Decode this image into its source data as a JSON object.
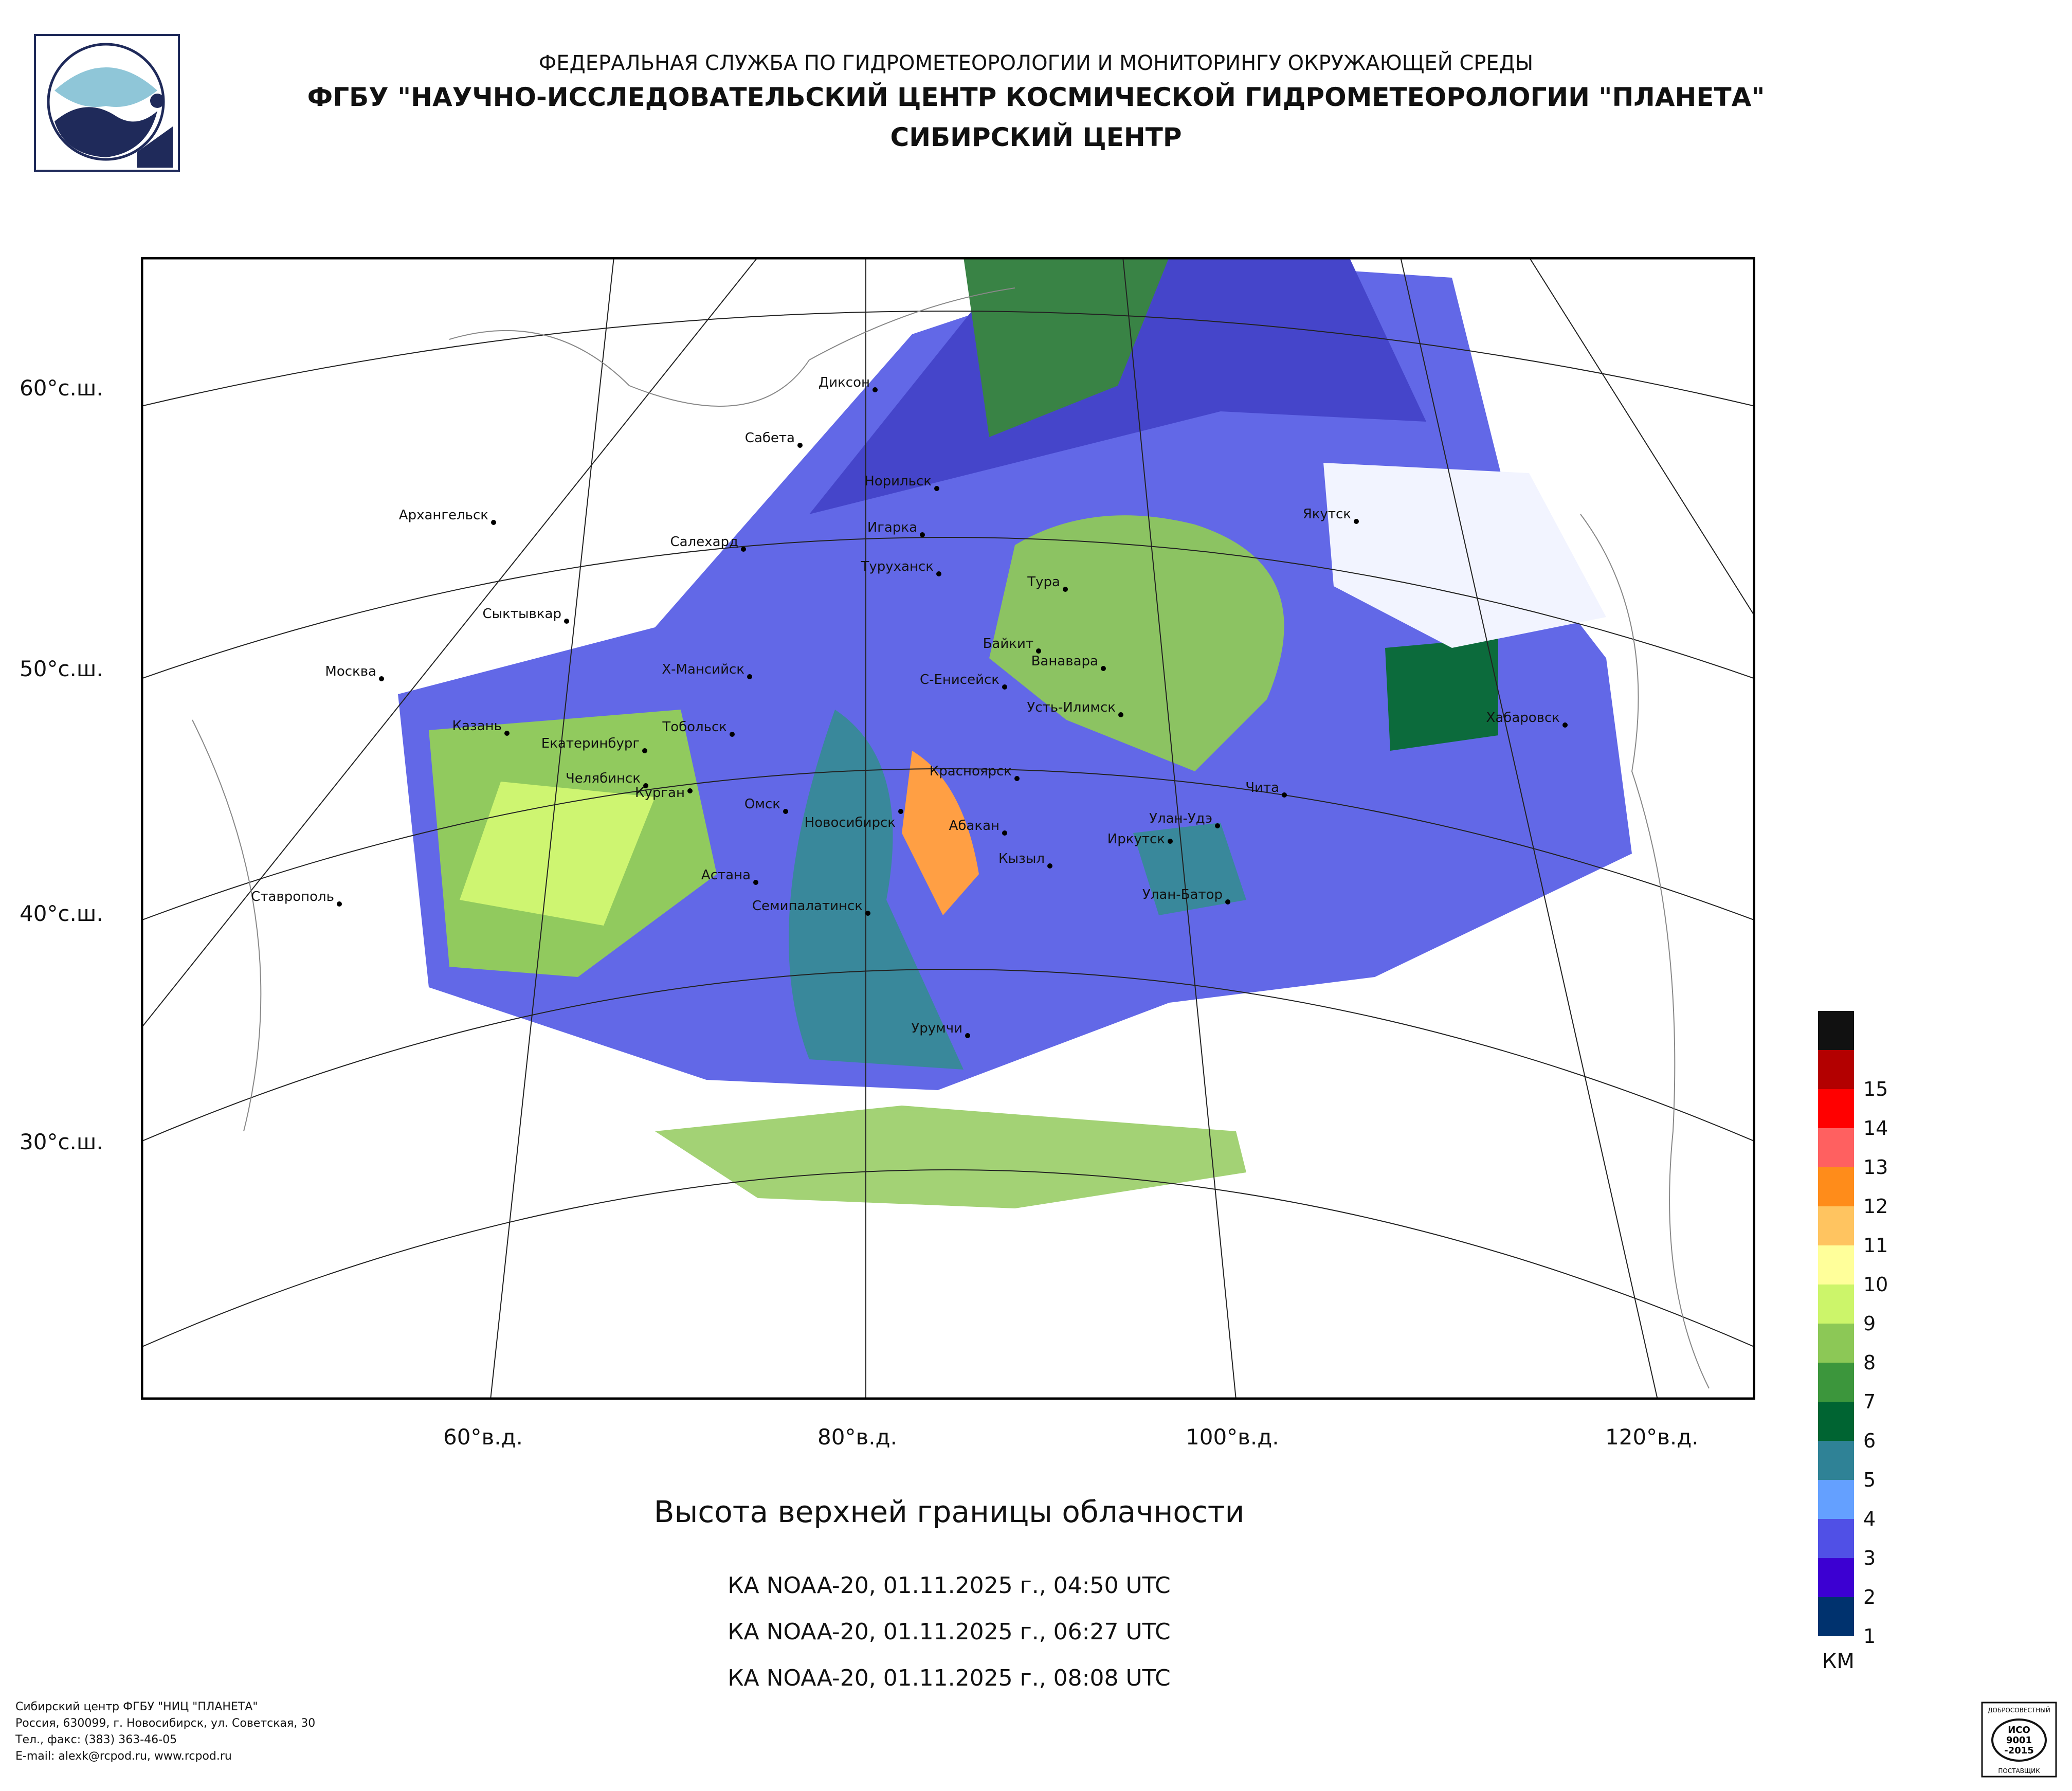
{
  "header": {
    "line1": "ФЕДЕРАЛЬНАЯ СЛУЖБА ПО ГИДРОМЕТЕОРОЛОГИИ И МОНИТОРИНГУ ОКРУЖАЮЩЕЙ СРЕДЫ",
    "line2": "ФГБУ \"НАУЧНО-ИССЛЕДОВАТЕЛЬСКИЙ ЦЕНТР КОСМИЧЕСКОЙ ГИДРОМЕТЕОРОЛОГИИ \"ПЛАНЕТА\"",
    "line3": "СИБИРСКИЙ ЦЕНТР"
  },
  "map": {
    "latitude_labels": [
      "60°с.ш.",
      "50°с.ш.",
      "40°с.ш.",
      "30°с.ш."
    ],
    "longitude_labels": [
      "60°в.д.",
      "80°в.д.",
      "100°в.д.",
      "120°в.д."
    ],
    "cities": [
      {
        "name": "Диксон"
      },
      {
        "name": "Сабета"
      },
      {
        "name": "Норильск"
      },
      {
        "name": "Архангельск"
      },
      {
        "name": "Игарка"
      },
      {
        "name": "Салехард"
      },
      {
        "name": "Якутск"
      },
      {
        "name": "Туруханск"
      },
      {
        "name": "Тура"
      },
      {
        "name": "Сыктывкар"
      },
      {
        "name": "Байкит"
      },
      {
        "name": "Ванавара"
      },
      {
        "name": "Москва"
      },
      {
        "name": "Х-Мансийск"
      },
      {
        "name": "С-Енисейск"
      },
      {
        "name": "Усть-Илимск"
      },
      {
        "name": "Хабаровск"
      },
      {
        "name": "Казань"
      },
      {
        "name": "Тобольск"
      },
      {
        "name": "Екатеринбург"
      },
      {
        "name": "Красноярск"
      },
      {
        "name": "Челябинск"
      },
      {
        "name": "Курган"
      },
      {
        "name": "Чита"
      },
      {
        "name": "Омск"
      },
      {
        "name": "Новосибирск"
      },
      {
        "name": "Улан-Удэ"
      },
      {
        "name": "Абакан"
      },
      {
        "name": "Иркутск"
      },
      {
        "name": "Кызыл"
      },
      {
        "name": "Астана"
      },
      {
        "name": "Улан-Батор"
      },
      {
        "name": "Ставрополь"
      },
      {
        "name": "Семипалатинск"
      },
      {
        "name": "Урумчи"
      }
    ]
  },
  "product": {
    "title": "Высота верхней границы облачности",
    "passes": [
      "КА NOAA-20, 01.11.2025 г., 04:50 UTC",
      "КА NOAA-20, 01.11.2025 г., 06:27 UTC",
      "КА NOAA-20, 01.11.2025 г., 08:08 UTC"
    ]
  },
  "legend": {
    "unit": "КМ",
    "levels": [
      {
        "label": "",
        "color": "#111111"
      },
      {
        "label": "15",
        "color": "#b30000"
      },
      {
        "label": "14",
        "color": "#ff0000"
      },
      {
        "label": "13",
        "color": "#ff6060"
      },
      {
        "label": "12",
        "color": "#ff8c1a"
      },
      {
        "label": "11",
        "color": "#ffc460"
      },
      {
        "label": "10",
        "color": "#ffff9a"
      },
      {
        "label": "9",
        "color": "#ccf56a"
      },
      {
        "label": "8",
        "color": "#8cc856"
      },
      {
        "label": "7",
        "color": "#3c963c"
      },
      {
        "label": "6",
        "color": "#006432"
      },
      {
        "label": "5",
        "color": "#2f8296"
      },
      {
        "label": "4",
        "color": "#64a0ff"
      },
      {
        "label": "3",
        "color": "#5050e6"
      },
      {
        "label": "2",
        "color": "#3c00d2"
      },
      {
        "label": "1",
        "color": "#00326e"
      }
    ]
  },
  "footer": {
    "line1": "Сибирский центр ФГБУ \"НИЦ \"ПЛАНЕТА\"",
    "line2": "Россия, 630099, г. Новосибирск, ул. Советская, 30",
    "line3": "Тел., факс: (383) 363-46-05",
    "line4": "E-mail: alexk@rcpod.ru, www.rcpod.ru"
  },
  "certificate": {
    "top": "ДОБРОСОВЕСТНЫЙ",
    "iso1": "ИСО",
    "iso2": "9001",
    "iso3": "-2015",
    "bottom": "ПОСТАВЩИК"
  }
}
